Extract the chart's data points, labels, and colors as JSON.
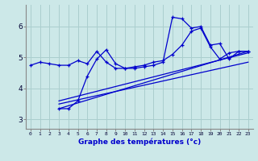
{
  "x_ticks": [
    0,
    1,
    2,
    3,
    4,
    5,
    6,
    7,
    8,
    9,
    10,
    11,
    12,
    13,
    14,
    15,
    16,
    17,
    18,
    19,
    20,
    21,
    22,
    23
  ],
  "line1_x": [
    0,
    1,
    2,
    3,
    4,
    5,
    6,
    7,
    8,
    9,
    10,
    11,
    12,
    13,
    14,
    15,
    16,
    17,
    18,
    19,
    20,
    21,
    22,
    23
  ],
  "line1_y": [
    4.75,
    4.85,
    4.8,
    4.75,
    4.75,
    4.9,
    4.8,
    5.2,
    4.85,
    4.65,
    4.65,
    4.7,
    4.75,
    4.85,
    4.9,
    5.1,
    5.4,
    5.85,
    5.95,
    5.35,
    4.95,
    5.15,
    5.2,
    5.2
  ],
  "line2_x": [
    3,
    4,
    5,
    6,
    7,
    8,
    9,
    10,
    11,
    12,
    13,
    14,
    15,
    16,
    17,
    18,
    19,
    20,
    21,
    22,
    23
  ],
  "line2_y": [
    3.35,
    3.35,
    3.6,
    4.4,
    4.95,
    5.25,
    4.8,
    4.65,
    4.65,
    4.7,
    4.75,
    4.85,
    6.3,
    6.25,
    5.95,
    6.0,
    5.4,
    5.45,
    4.95,
    5.2,
    5.2
  ],
  "line3_x": [
    3,
    23
  ],
  "line3_y": [
    3.35,
    5.2
  ],
  "line4_x": [
    3,
    23
  ],
  "line4_y": [
    3.5,
    4.85
  ],
  "line5_x": [
    3,
    23
  ],
  "line5_y": [
    3.6,
    5.15
  ],
  "ylim": [
    2.7,
    6.7
  ],
  "yticks": [
    3,
    4,
    5,
    6
  ],
  "xlabel": "Graphe des températures (°c)",
  "line_color": "#0000cd",
  "bg_color": "#cce8e8",
  "grid_color": "#aacece",
  "spine_color": "#888888"
}
